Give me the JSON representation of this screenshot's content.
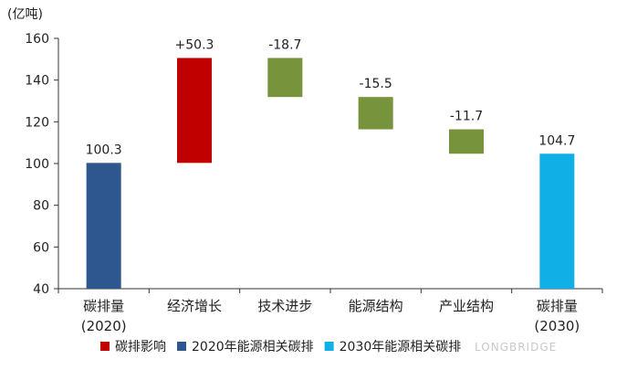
{
  "chart_data": {
    "type": "bar",
    "unit_label": "(亿吨)",
    "ylim": [
      40,
      160
    ],
    "yticks": [
      40,
      60,
      80,
      100,
      120,
      140,
      160
    ],
    "grid": false,
    "categories": [
      [
        "碳排量",
        "(2020)"
      ],
      [
        "经济增长"
      ],
      [
        "技术进步"
      ],
      [
        "能源结构"
      ],
      [
        "产业结构"
      ],
      [
        "碳排量",
        "(2030)"
      ]
    ],
    "bars": [
      {
        "base": 40,
        "top": 100.3,
        "label": "100.3",
        "series": 1
      },
      {
        "base": 100.3,
        "top": 150.6,
        "label": "+50.3",
        "series": 0
      },
      {
        "base": 131.9,
        "top": 150.6,
        "label": "-18.7",
        "series": 0
      },
      {
        "base": 116.4,
        "top": 131.9,
        "label": "-15.5",
        "series": 0
      },
      {
        "base": 104.7,
        "top": 116.4,
        "label": "-11.7",
        "series": 0
      },
      {
        "base": 40,
        "top": 104.7,
        "label": "104.7",
        "series": 2
      }
    ],
    "series": [
      {
        "name": "碳排影响",
        "color": "#c00000",
        "neg_color": "#77933c"
      },
      {
        "name": "2020年能源相关碳排",
        "color": "#2e5790"
      },
      {
        "name": "2030年能源相关碳排",
        "color": "#10b0e6"
      }
    ],
    "legend_position": "bottom"
  },
  "watermark": "LONGBRIDGE"
}
